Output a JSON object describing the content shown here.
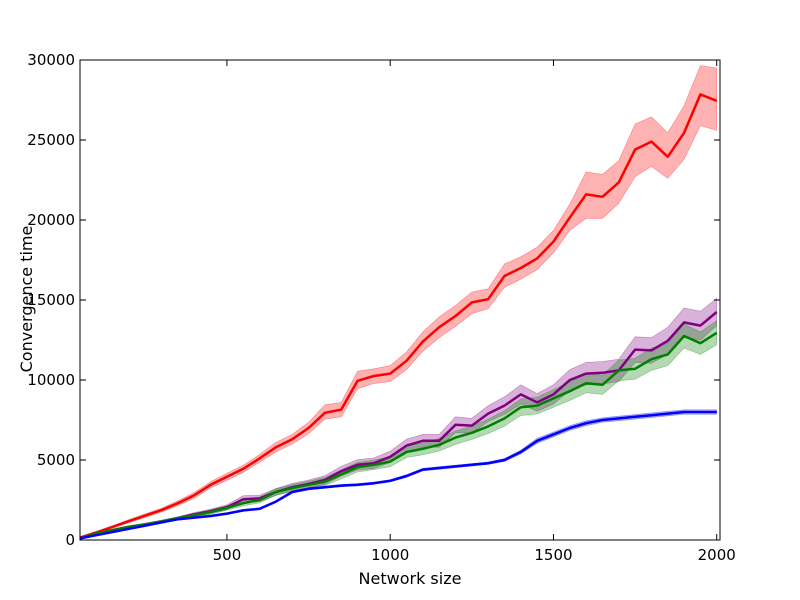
{
  "chart_data": {
    "type": "line",
    "title": "",
    "xlabel": "Network size",
    "ylabel": "Convergence time",
    "xlim": [
      50,
      2010
    ],
    "ylim": [
      0,
      30000
    ],
    "xticks": [
      500,
      1000,
      1500,
      2000
    ],
    "yticks": [
      0,
      5000,
      10000,
      15000,
      20000,
      25000,
      30000
    ],
    "grid": false,
    "legend": "none",
    "x": [
      50,
      100,
      150,
      200,
      250,
      300,
      350,
      400,
      450,
      500,
      550,
      600,
      650,
      700,
      750,
      800,
      850,
      900,
      950,
      1000,
      1050,
      1100,
      1150,
      1200,
      1250,
      1300,
      1350,
      1400,
      1450,
      1500,
      1550,
      1600,
      1650,
      1700,
      1750,
      1800,
      1850,
      1900,
      1950,
      2000
    ],
    "series": [
      {
        "color": "#ff0000",
        "values": [
          150,
          470,
          820,
          1180,
          1530,
          1870,
          2300,
          2800,
          3450,
          3950,
          4450,
          5100,
          5800,
          6300,
          7000,
          7950,
          8150,
          9950,
          10250,
          10400,
          11200,
          12400,
          13300,
          14000,
          14850,
          15050,
          16500,
          17000,
          17600,
          18650,
          20150,
          21600,
          21450,
          22350,
          24400,
          24900,
          23950,
          25450,
          27850,
          27450
        ],
        "lower": [
          100,
          400,
          740,
          1080,
          1420,
          1750,
          2150,
          2620,
          3250,
          3730,
          4230,
          4850,
          5500,
          6000,
          6650,
          7550,
          7700,
          9450,
          9780,
          9900,
          10650,
          11800,
          12650,
          13350,
          14150,
          14450,
          15800,
          16300,
          16900,
          17950,
          19350,
          20100,
          20100,
          21050,
          22700,
          23350,
          22600,
          23800,
          25900,
          25600
        ],
        "upper": [
          200,
          540,
          900,
          1280,
          1640,
          1990,
          2450,
          2980,
          3650,
          4170,
          4670,
          5350,
          6100,
          6600,
          7350,
          8450,
          8600,
          10550,
          10700,
          10900,
          11750,
          13000,
          13950,
          14650,
          15500,
          15700,
          17250,
          17700,
          18300,
          19350,
          21000,
          23000,
          22850,
          23700,
          26000,
          26450,
          25450,
          27150,
          29650,
          29500
        ]
      },
      {
        "color": "#800080",
        "values": [
          100,
          400,
          620,
          820,
          970,
          1150,
          1350,
          1600,
          1800,
          2050,
          2550,
          2600,
          3000,
          3300,
          3500,
          3750,
          4300,
          4700,
          4800,
          5200,
          5900,
          6200,
          6200,
          7200,
          7150,
          7900,
          8400,
          9100,
          8600,
          9100,
          10000,
          10400,
          10450,
          10600,
          11900,
          11850,
          12450,
          13600,
          13400,
          14250
        ],
        "lower": [
          80,
          350,
          560,
          750,
          890,
          1060,
          1250,
          1480,
          1670,
          1900,
          2330,
          2400,
          2780,
          3060,
          3250,
          3480,
          4000,
          4380,
          4470,
          4850,
          5500,
          5800,
          5800,
          6700,
          6700,
          7400,
          7850,
          8500,
          8050,
          8500,
          9350,
          9700,
          9750,
          9900,
          11100,
          11050,
          11600,
          12700,
          12500,
          13400
        ],
        "upper": [
          120,
          450,
          680,
          890,
          1050,
          1240,
          1450,
          1720,
          1930,
          2200,
          2770,
          2800,
          3220,
          3540,
          3750,
          4020,
          4600,
          5020,
          5130,
          5550,
          6300,
          6600,
          6600,
          7700,
          7600,
          8400,
          8950,
          9700,
          9150,
          9700,
          10650,
          11100,
          11150,
          11300,
          12700,
          12650,
          13300,
          14500,
          14300,
          15100
        ]
      },
      {
        "color": "#008000",
        "values": [
          100,
          400,
          620,
          820,
          970,
          1150,
          1350,
          1550,
          1750,
          2000,
          2300,
          2500,
          3000,
          3250,
          3450,
          3650,
          4100,
          4550,
          4700,
          4900,
          5500,
          5700,
          5950,
          6400,
          6700,
          7100,
          7600,
          8300,
          8400,
          8850,
          9300,
          9800,
          9700,
          10600,
          10700,
          11300,
          11600,
          12750,
          12300,
          12950
        ],
        "lower": [
          80,
          350,
          560,
          750,
          890,
          1060,
          1250,
          1430,
          1620,
          1860,
          2130,
          2320,
          2800,
          3030,
          3220,
          3400,
          3820,
          4250,
          4400,
          4580,
          5150,
          5330,
          5560,
          5980,
          6280,
          6650,
          7120,
          7780,
          7880,
          8300,
          8720,
          9200,
          9100,
          9950,
          10050,
          10600,
          10900,
          12000,
          11600,
          12200
        ],
        "upper": [
          120,
          450,
          680,
          890,
          1050,
          1240,
          1450,
          1670,
          1880,
          2140,
          2470,
          2680,
          3200,
          3470,
          3680,
          3900,
          4380,
          4850,
          5000,
          5220,
          5850,
          6070,
          6340,
          6820,
          7120,
          7550,
          8080,
          8820,
          8920,
          9400,
          9880,
          10400,
          10300,
          11250,
          11350,
          12000,
          12300,
          13500,
          13000,
          13700
        ]
      },
      {
        "color": "#0000ff",
        "values": [
          100,
          300,
          500,
          700,
          900,
          1100,
          1300,
          1400,
          1500,
          1650,
          1850,
          1950,
          2400,
          3000,
          3200,
          3300,
          3400,
          3450,
          3550,
          3700,
          4000,
          4400,
          4500,
          4600,
          4700,
          4800,
          5000,
          5500,
          6200,
          6600,
          7000,
          7300,
          7500,
          7600,
          7700,
          7800,
          7900,
          8000,
          8000,
          8000
        ],
        "lower": [
          80,
          270,
          460,
          660,
          860,
          1050,
          1240,
          1340,
          1440,
          1590,
          1790,
          1890,
          2340,
          2930,
          3130,
          3230,
          3330,
          3380,
          3480,
          3630,
          3920,
          4320,
          4420,
          4520,
          4620,
          4720,
          4910,
          5380,
          6050,
          6450,
          6850,
          7150,
          7360,
          7460,
          7560,
          7660,
          7760,
          7860,
          7860,
          7860
        ],
        "upper": [
          120,
          330,
          540,
          740,
          940,
          1150,
          1360,
          1460,
          1560,
          1710,
          1910,
          2010,
          2460,
          3070,
          3270,
          3370,
          3470,
          3520,
          3620,
          3770,
          4080,
          4480,
          4580,
          4680,
          4780,
          4880,
          5090,
          5620,
          6350,
          6750,
          7150,
          7450,
          7640,
          7740,
          7840,
          7940,
          8040,
          8140,
          8140,
          8140
        ]
      }
    ]
  }
}
